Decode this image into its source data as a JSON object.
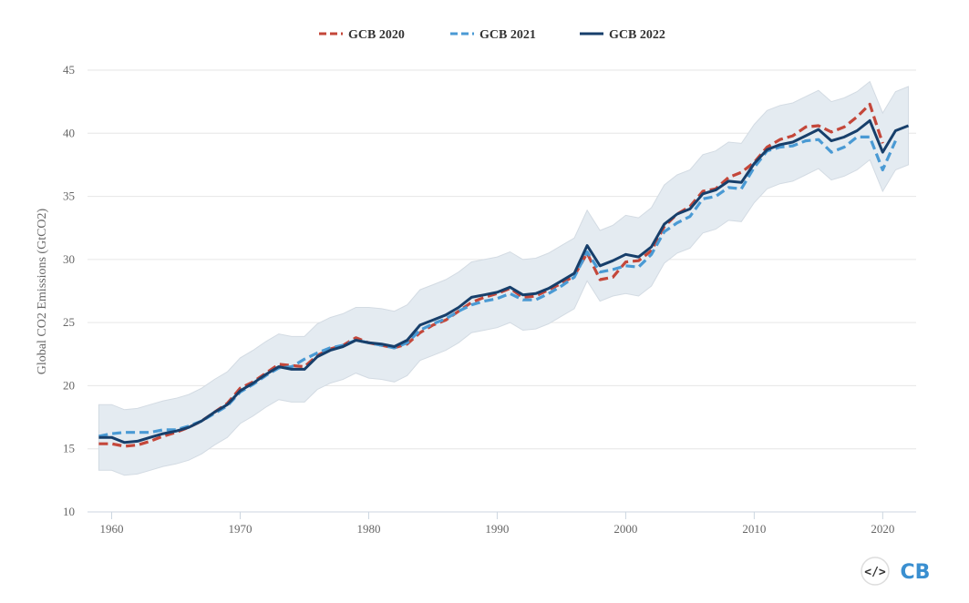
{
  "chart_data": {
    "type": "line",
    "title": "",
    "xlabel": "",
    "ylabel": "Global CO2 Emissions (GtCO2)",
    "xlim": [
      1958.9,
      2022.6
    ],
    "ylim": [
      10,
      45
    ],
    "yticks": [
      10,
      15,
      20,
      25,
      30,
      35,
      40,
      45
    ],
    "xticks": [
      1960,
      1970,
      1980,
      1990,
      2000,
      2010,
      2020
    ],
    "grid": "horizontal",
    "legend_position": "top-center",
    "series": [
      {
        "name": "GCB 2020",
        "color": "#c4473a",
        "style": "dashed",
        "start_year": 1959,
        "values": [
          15.4,
          15.4,
          15.2,
          15.3,
          15.6,
          16.0,
          16.3,
          16.7,
          17.2,
          17.9,
          18.6,
          19.8,
          20.3,
          21.0,
          21.7,
          21.6,
          21.5,
          22.4,
          22.9,
          23.2,
          23.8,
          23.4,
          23.2,
          23.0,
          23.3,
          24.2,
          24.8,
          25.2,
          25.9,
          26.6,
          27.0,
          27.3,
          27.7,
          27.0,
          27.1,
          27.6,
          28.1,
          28.7,
          30.5,
          28.4,
          28.6,
          29.8,
          29.9,
          30.7,
          32.6,
          33.6,
          34.2,
          35.4,
          35.6,
          36.5,
          36.9,
          37.7,
          38.9,
          39.5,
          39.8,
          40.5,
          40.6,
          40.1,
          40.5,
          41.3,
          42.3,
          39.2
        ]
      },
      {
        "name": "GCB 2021",
        "color": "#4a9ad4",
        "style": "dashed",
        "start_year": 1959,
        "values": [
          16.0,
          16.2,
          16.3,
          16.3,
          16.3,
          16.5,
          16.5,
          16.8,
          17.2,
          17.8,
          18.4,
          19.5,
          20.1,
          20.8,
          21.4,
          21.5,
          22.1,
          22.6,
          23.0,
          23.2,
          23.6,
          23.4,
          23.2,
          23.0,
          23.4,
          24.4,
          24.9,
          25.3,
          25.9,
          26.4,
          26.7,
          26.9,
          27.3,
          26.8,
          26.8,
          27.3,
          27.9,
          28.6,
          30.6,
          29.0,
          29.2,
          29.5,
          29.4,
          30.4,
          32.2,
          32.9,
          33.4,
          34.8,
          35.0,
          35.7,
          35.6,
          37.3,
          38.6,
          38.9,
          39.0,
          39.4,
          39.5,
          38.5,
          38.9,
          39.7,
          39.7,
          37.1,
          39.4
        ]
      },
      {
        "name": "GCB 2022",
        "color": "#173f6b",
        "style": "solid",
        "start_year": 1959,
        "values": [
          15.9,
          15.9,
          15.5,
          15.6,
          15.9,
          16.2,
          16.4,
          16.7,
          17.2,
          17.9,
          18.5,
          19.6,
          20.2,
          20.9,
          21.5,
          21.3,
          21.3,
          22.3,
          22.8,
          23.1,
          23.6,
          23.4,
          23.3,
          23.1,
          23.6,
          24.8,
          25.2,
          25.6,
          26.2,
          27.0,
          27.2,
          27.4,
          27.8,
          27.2,
          27.3,
          27.7,
          28.3,
          28.9,
          31.1,
          29.5,
          29.9,
          30.4,
          30.2,
          31.0,
          32.8,
          33.6,
          34.0,
          35.2,
          35.5,
          36.2,
          36.1,
          37.6,
          38.7,
          39.1,
          39.3,
          39.8,
          40.3,
          39.4,
          39.7,
          40.2,
          41.0,
          38.5,
          40.2,
          40.6
        ]
      }
    ],
    "uncertainty_band": {
      "around_series": "GCB 2022",
      "color": "#e4ebf1",
      "plusminus": [
        {
          "from": 1959,
          "to": 1979,
          "value": 2.6
        },
        {
          "from": 1980,
          "to": 1999,
          "value": 2.8
        },
        {
          "from": 2000,
          "to": 2022,
          "value": 3.1
        }
      ]
    }
  },
  "logo": {
    "text": "CB",
    "code_glyph": "</>",
    "color": "#3a8fd0"
  }
}
